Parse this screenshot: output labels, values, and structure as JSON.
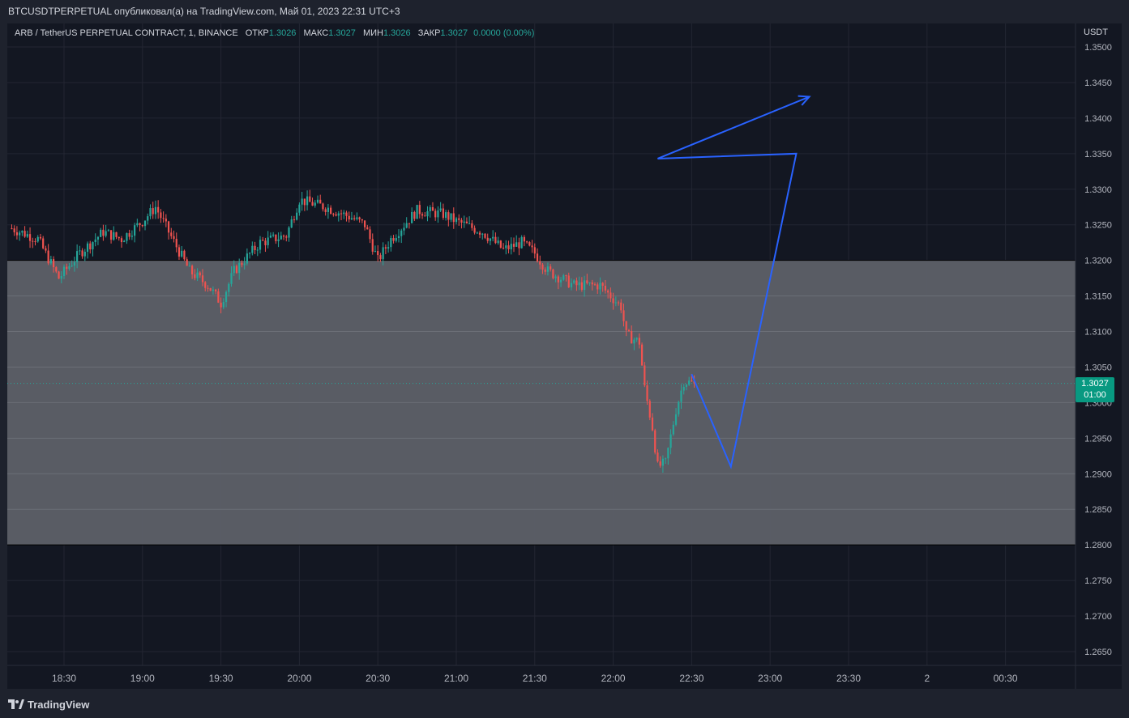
{
  "header": {
    "publish_line": "BTCUSDTPERPETUAL опубликовал(а) на TradingView.com, Май 01, 2023 22:31 UTC+3"
  },
  "legend": {
    "symbol": "ARB / TetherUS PERPETUAL CONTRACT, 1, BINANCE",
    "open_label": "ОТКР",
    "open_value": "1.3026",
    "high_label": "МАКС",
    "high_value": "1.3027",
    "low_label": "МИН",
    "low_value": "1.3026",
    "close_label": "ЗАКР",
    "close_value": "1.3027",
    "change": "0.0000 (0.00%)"
  },
  "price_axis": {
    "currency": "USDT"
  },
  "last_price": {
    "value": "1.3027",
    "countdown": "01:00"
  },
  "footer": {
    "brand": "TradingView",
    "logo_icon": "tradingview-logo-icon"
  },
  "colors": {
    "background": "#131722",
    "up": "#26a69a",
    "down": "#ef5350",
    "zone": "#5d6068",
    "drawing": "#2962ff",
    "last_price_tag": "#089981"
  },
  "chart_data": {
    "type": "candlestick",
    "y_ticks": [
      "1.3500",
      "1.3450",
      "1.3400",
      "1.3350",
      "1.3300",
      "1.3250",
      "1.3200",
      "1.3150",
      "1.3100",
      "1.3050",
      "1.3000",
      "1.2950",
      "1.2900",
      "1.2850",
      "1.2800",
      "1.2750",
      "1.2700",
      "1.2650"
    ],
    "x_ticks": [
      "18:30",
      "19:00",
      "19:30",
      "20:00",
      "20:30",
      "21:00",
      "21:30",
      "22:00",
      "22:30",
      "23:00",
      "23:30",
      "2",
      "00:30"
    ],
    "ylim": [
      1.263,
      1.354
    ],
    "grid": true,
    "zone": {
      "top": 1.32,
      "bottom": 1.28
    },
    "anchors": [
      [
        "18:10",
        1.3245
      ],
      [
        "18:20",
        1.323
      ],
      [
        "18:28",
        1.3175
      ],
      [
        "18:36",
        1.321
      ],
      [
        "18:45",
        1.324
      ],
      [
        "18:52",
        1.323
      ],
      [
        "19:00",
        1.3255
      ],
      [
        "19:05",
        1.3275
      ],
      [
        "19:10",
        1.324
      ],
      [
        "19:18",
        1.3185
      ],
      [
        "19:25",
        1.3165
      ],
      [
        "19:30",
        1.314
      ],
      [
        "19:35",
        1.3185
      ],
      [
        "19:45",
        1.3225
      ],
      [
        "19:55",
        1.3235
      ],
      [
        "20:00",
        1.3285
      ],
      [
        "20:10",
        1.3275
      ],
      [
        "20:20",
        1.326
      ],
      [
        "20:25",
        1.325
      ],
      [
        "20:30",
        1.32
      ],
      [
        "20:35",
        1.323
      ],
      [
        "20:45",
        1.327
      ],
      [
        "20:55",
        1.3265
      ],
      [
        "21:00",
        1.3255
      ],
      [
        "21:10",
        1.324
      ],
      [
        "21:18",
        1.3215
      ],
      [
        "21:25",
        1.3225
      ],
      [
        "21:30",
        1.321
      ],
      [
        "21:35",
        1.3185
      ],
      [
        "21:45",
        1.3165
      ],
      [
        "21:55",
        1.3165
      ],
      [
        "22:03",
        1.3135
      ],
      [
        "22:05",
        1.3095
      ],
      [
        "22:10",
        1.3085
      ],
      [
        "22:12",
        1.302
      ],
      [
        "22:15",
        1.2965
      ],
      [
        "22:17",
        1.291
      ],
      [
        "22:20",
        1.2915
      ],
      [
        "22:24",
        1.299
      ],
      [
        "22:27",
        1.303
      ],
      [
        "22:31",
        1.3027
      ]
    ],
    "drawing": [
      [
        "22:30",
        1.304
      ],
      [
        "22:45",
        1.291
      ],
      [
        "23:10",
        1.335
      ],
      [
        "22:17",
        1.3343
      ],
      [
        "23:15",
        1.343
      ]
    ]
  }
}
